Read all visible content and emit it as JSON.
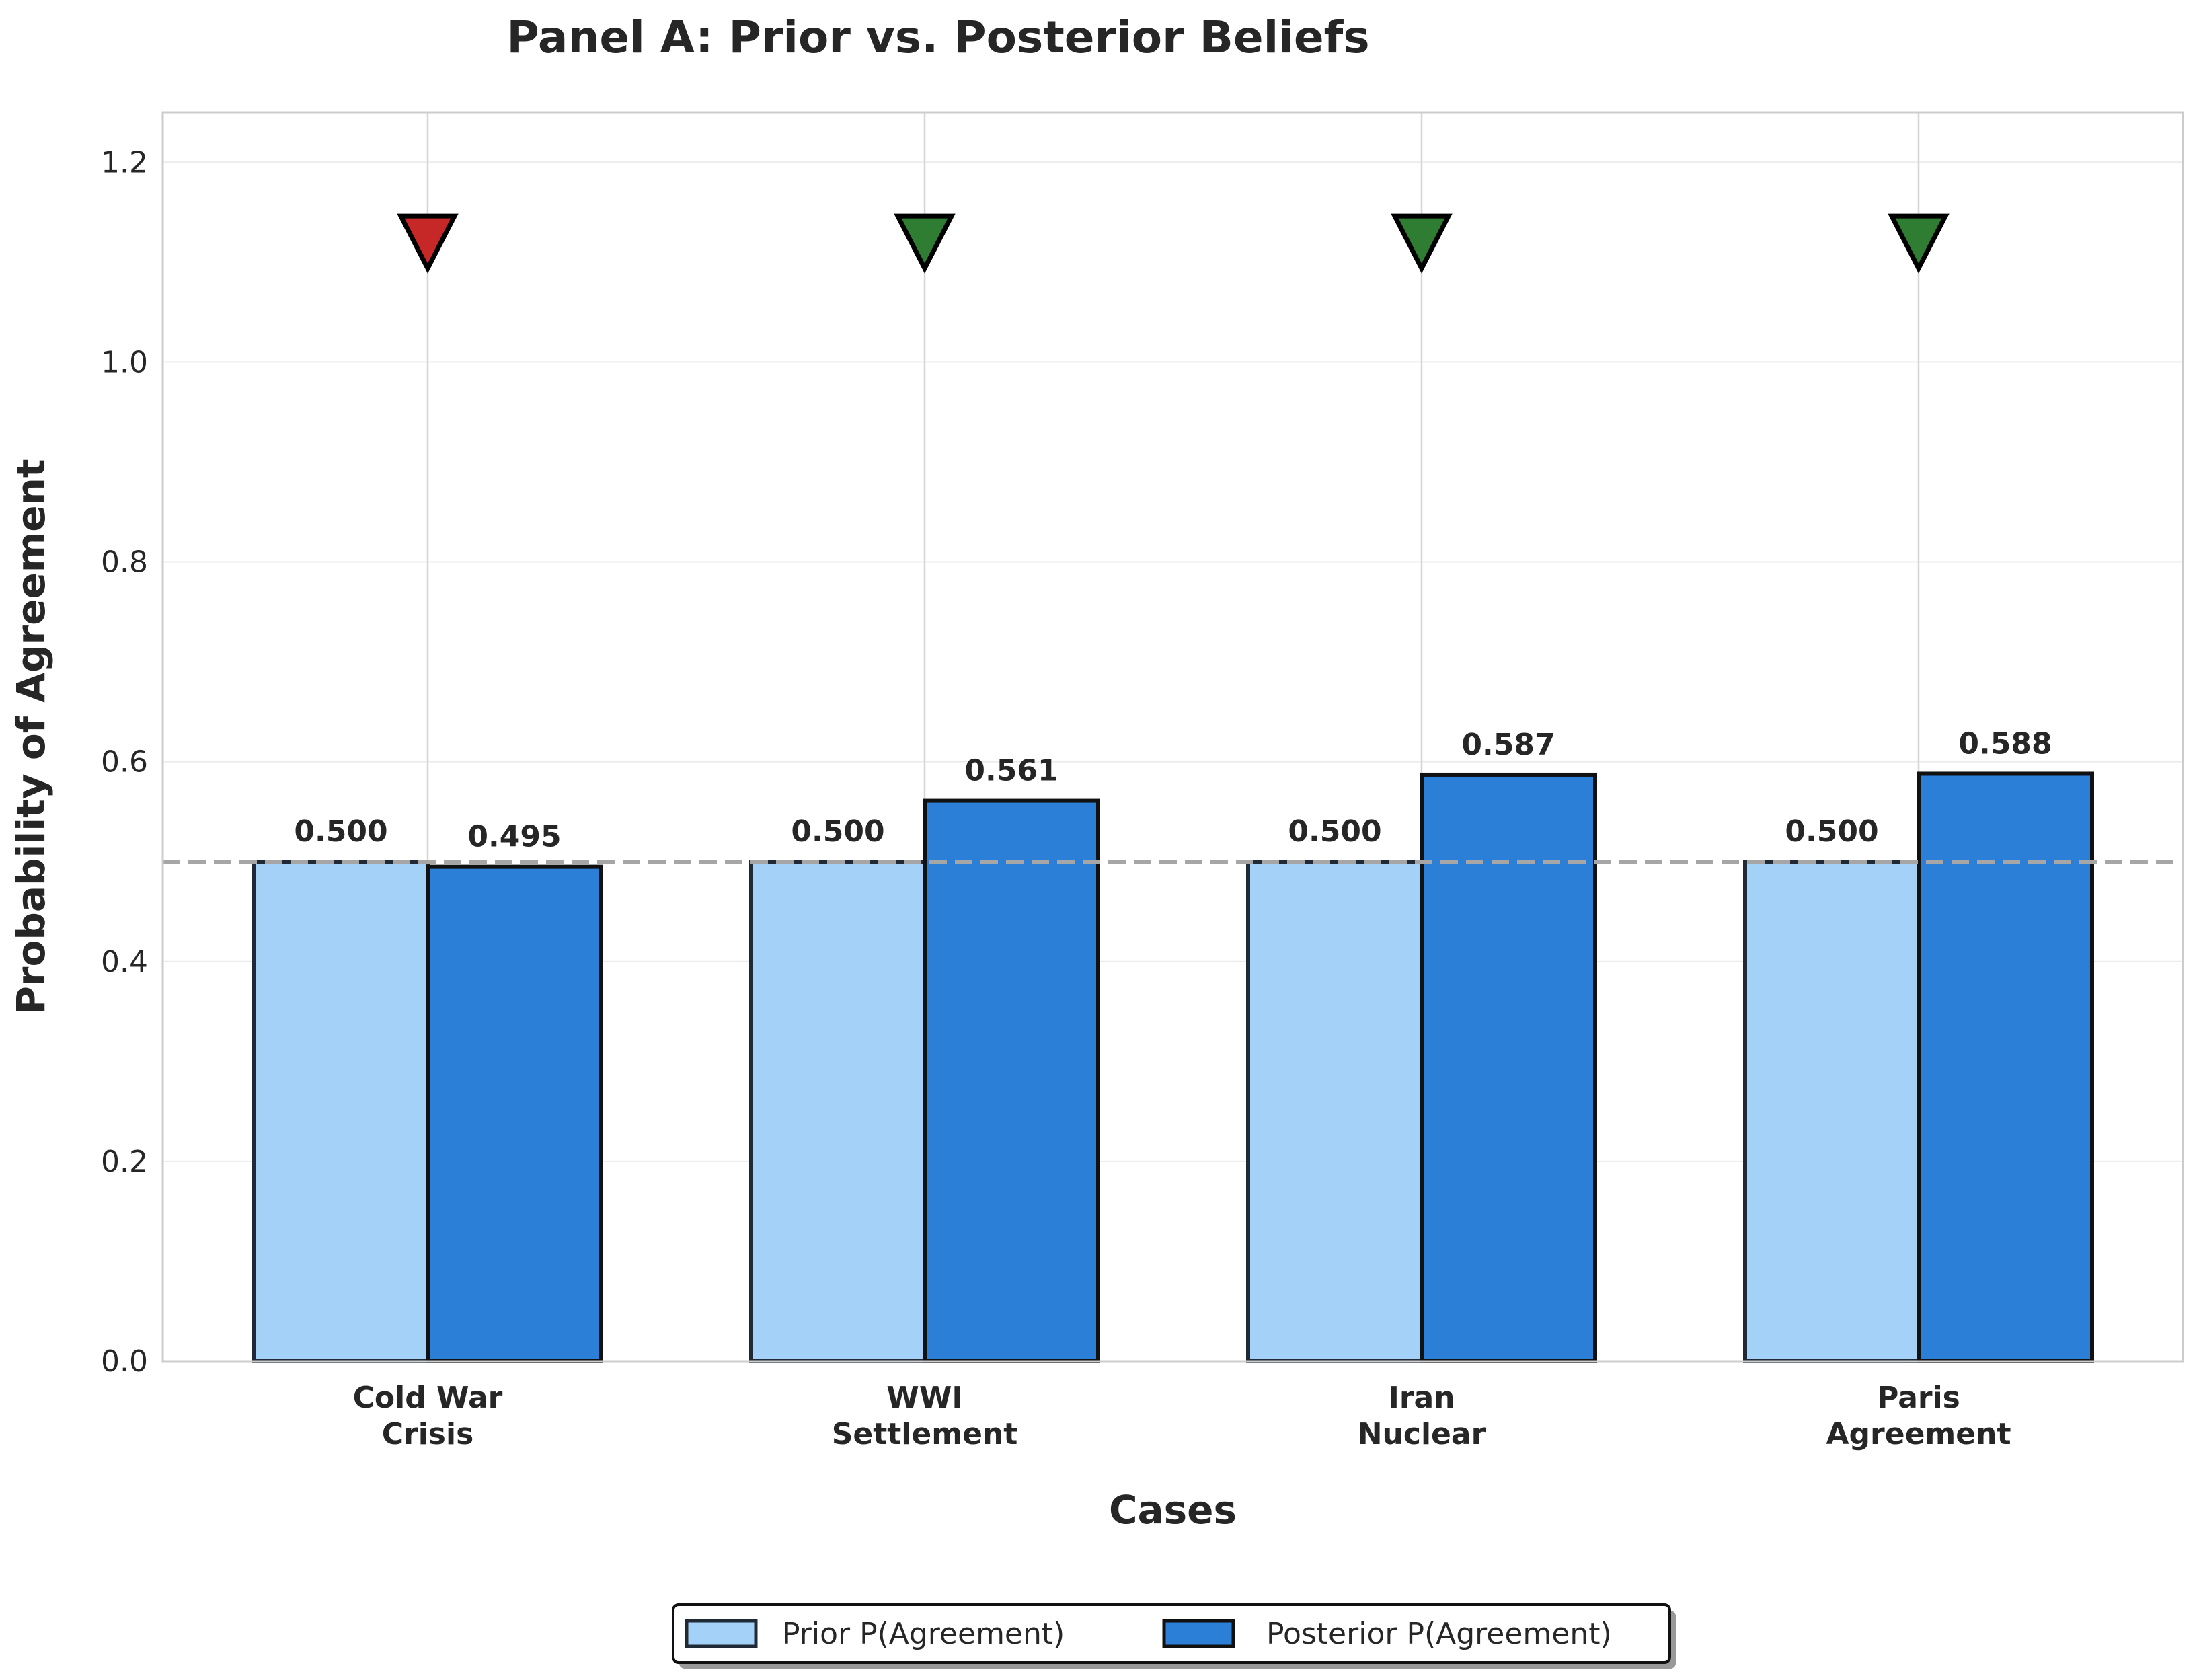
{
  "chart_data": {
    "type": "bar",
    "title": "Panel A: Prior vs. Posterior Beliefs",
    "xlabel": "Cases",
    "ylabel": "Probability of Agreement",
    "categories": [
      [
        "Cold War",
        "Crisis"
      ],
      [
        "WWI",
        "Settlement"
      ],
      [
        "Iran",
        "Nuclear"
      ],
      [
        "Paris",
        "Agreement"
      ]
    ],
    "series": [
      {
        "name": "Prior P(Agreement)",
        "color": "#a4d1f8",
        "values": [
          0.5,
          0.5,
          0.5,
          0.5
        ],
        "labels": [
          "0.500",
          "0.500",
          "0.500",
          "0.500"
        ]
      },
      {
        "name": "Posterior P(Agreement)",
        "color": "#2b7fd6",
        "values": [
          0.495,
          0.561,
          0.587,
          0.588
        ],
        "labels": [
          "0.495",
          "0.561",
          "0.587",
          "0.588"
        ]
      }
    ],
    "ylim": [
      0,
      1.25
    ],
    "yticks": [
      "0.0",
      "0.2",
      "0.4",
      "0.6",
      "0.8",
      "1.0",
      "1.2"
    ],
    "reference_line": {
      "y": 0.5,
      "style": "dashed",
      "color": "#a6a6a6"
    },
    "markers": {
      "shape": "down-triangle",
      "y": 1.12,
      "colors": [
        "#c62828",
        "#2e7d32",
        "#2e7d32",
        "#2e7d32"
      ]
    },
    "grid": true,
    "legend": {
      "placement": "bottom-center"
    }
  }
}
